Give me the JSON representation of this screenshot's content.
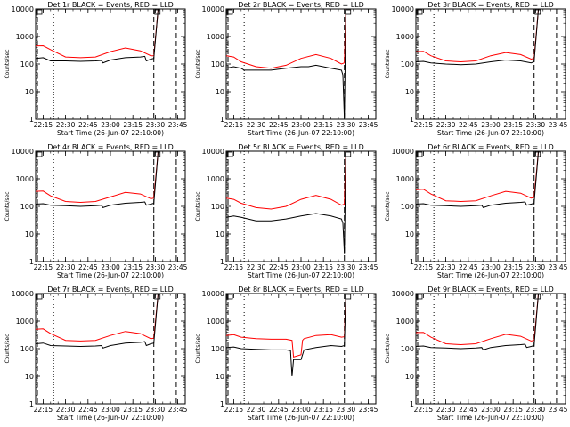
{
  "chart_data": [
    {
      "type": "line",
      "title": "Det 1r BLACK = Events, RED = LLD",
      "xlabel": "Start Time (26-Jun-07 22:10:00)",
      "ylabel": "Counts/sec",
      "yscale": "log",
      "ylim": [
        1,
        10000
      ],
      "xlim_minutes": [
        0,
        100
      ],
      "x_tick_labels": [
        "22:15",
        "22:30",
        "22:45",
        "23:00",
        "23:15",
        "23:30",
        "23:45"
      ],
      "y_tick_labels": [
        "1",
        "10",
        "100",
        "1000",
        "10000"
      ],
      "series": [
        {
          "color": "#ff0000",
          "x": [
            0,
            5,
            10,
            20,
            30,
            40,
            50,
            60,
            70,
            77,
            79,
            82,
            84
          ],
          "y": [
            450,
            460,
            330,
            180,
            170,
            180,
            280,
            380,
            300,
            200,
            200,
            12000,
            12000
          ]
        },
        {
          "color": "#000000",
          "x": [
            0,
            5,
            10,
            20,
            30,
            40,
            44,
            45,
            50,
            60,
            70,
            73,
            74,
            77,
            79,
            82,
            84
          ],
          "y": [
            160,
            170,
            130,
            130,
            125,
            130,
            135,
            110,
            140,
            170,
            180,
            190,
            130,
            150,
            160,
            12000,
            12000
          ]
        }
      ],
      "vlines": [
        {
          "x": 0,
          "style": "dashed"
        },
        {
          "x": 12,
          "style": "dotted"
        },
        {
          "x": 79,
          "style": "dashed"
        },
        {
          "x": 94,
          "style": "dashed"
        }
      ]
    },
    {
      "type": "line",
      "title": "Det 2r BLACK = Events, RED = LLD",
      "xlabel": "Start Time (26-Jun-07 22:10:00)",
      "ylabel": "Counts/sec",
      "yscale": "log",
      "ylim": [
        1,
        10000
      ],
      "xlim_minutes": [
        0,
        100
      ],
      "x_tick_labels": [
        "22:15",
        "22:30",
        "22:45",
        "23:00",
        "23:15",
        "23:30",
        "23:45"
      ],
      "y_tick_labels": [
        "1",
        "10",
        "100",
        "1000",
        "10000"
      ],
      "series": [
        {
          "color": "#ff0000",
          "x": [
            0,
            5,
            10,
            20,
            30,
            40,
            50,
            60,
            70,
            77,
            79,
            80,
            83
          ],
          "y": [
            200,
            180,
            120,
            80,
            70,
            90,
            160,
            220,
            160,
            100,
            110,
            12000,
            12000
          ]
        },
        {
          "color": "#000000",
          "x": [
            0,
            5,
            10,
            12,
            20,
            30,
            40,
            50,
            55,
            60,
            70,
            77,
            78,
            79,
            80
          ],
          "y": [
            70,
            80,
            70,
            60,
            60,
            60,
            70,
            80,
            80,
            90,
            70,
            60,
            40,
            1,
            12000
          ]
        }
      ],
      "vlines": [
        {
          "x": 0,
          "style": "dashed"
        },
        {
          "x": 12,
          "style": "dotted"
        },
        {
          "x": 79,
          "style": "dashed"
        }
      ]
    },
    {
      "type": "line",
      "title": "Det 3r BLACK = Events, RED = LLD",
      "xlabel": "Start Time (26-Jun-07 22:10:00)",
      "ylabel": "Counts/sec",
      "yscale": "log",
      "ylim": [
        1,
        10000
      ],
      "xlim_minutes": [
        0,
        100
      ],
      "x_tick_labels": [
        "22:15",
        "22:30",
        "22:45",
        "23:00",
        "23:15",
        "23:30",
        "23:45"
      ],
      "y_tick_labels": [
        "1",
        "10",
        "100",
        "1000",
        "10000"
      ],
      "series": [
        {
          "color": "#ff0000",
          "x": [
            0,
            5,
            10,
            20,
            30,
            40,
            50,
            60,
            70,
            77,
            79,
            82,
            84
          ],
          "y": [
            280,
            290,
            200,
            130,
            120,
            130,
            200,
            260,
            220,
            150,
            160,
            12000,
            12000
          ]
        },
        {
          "color": "#000000",
          "x": [
            0,
            5,
            10,
            20,
            30,
            40,
            50,
            60,
            70,
            77,
            79,
            82,
            84
          ],
          "y": [
            120,
            125,
            110,
            100,
            95,
            100,
            120,
            140,
            130,
            110,
            120,
            12000,
            12000
          ]
        }
      ],
      "vlines": [
        {
          "x": 0,
          "style": "dashed"
        },
        {
          "x": 12,
          "style": "dotted"
        },
        {
          "x": 79,
          "style": "dashed"
        },
        {
          "x": 94,
          "style": "dashed"
        }
      ]
    },
    {
      "type": "line",
      "title": "Det 4r BLACK = Events, RED = LLD",
      "xlabel": "Start Time (26-Jun-07 22:10:00)",
      "ylabel": "Counts/sec",
      "yscale": "log",
      "ylim": [
        1,
        10000
      ],
      "xlim_minutes": [
        0,
        100
      ],
      "x_tick_labels": [
        "22:15",
        "22:30",
        "22:45",
        "23:00",
        "23:15",
        "23:30",
        "23:45"
      ],
      "y_tick_labels": [
        "1",
        "10",
        "100",
        "1000",
        "10000"
      ],
      "series": [
        {
          "color": "#ff0000",
          "x": [
            0,
            5,
            10,
            20,
            30,
            40,
            50,
            60,
            70,
            77,
            79,
            82,
            84
          ],
          "y": [
            350,
            360,
            240,
            150,
            140,
            150,
            220,
            320,
            280,
            190,
            200,
            12000,
            12000
          ]
        },
        {
          "color": "#000000",
          "x": [
            0,
            5,
            10,
            20,
            30,
            40,
            44,
            45,
            50,
            60,
            70,
            73,
            74,
            77,
            79,
            82,
            84
          ],
          "y": [
            120,
            125,
            110,
            105,
            100,
            105,
            110,
            90,
            110,
            130,
            140,
            145,
            110,
            120,
            130,
            12000,
            12000
          ]
        }
      ],
      "vlines": [
        {
          "x": 0,
          "style": "dashed"
        },
        {
          "x": 12,
          "style": "dotted"
        },
        {
          "x": 79,
          "style": "dashed"
        },
        {
          "x": 94,
          "style": "dashed"
        }
      ]
    },
    {
      "type": "line",
      "title": "Det 5r BLACK = Events, RED = LLD",
      "xlabel": "Start Time (26-Jun-07 22:10:00)",
      "ylabel": "Counts/sec",
      "yscale": "log",
      "ylim": [
        1,
        10000
      ],
      "xlim_minutes": [
        0,
        100
      ],
      "x_tick_labels": [
        "22:15",
        "22:30",
        "22:45",
        "23:00",
        "23:15",
        "23:30",
        "23:45"
      ],
      "y_tick_labels": [
        "1",
        "10",
        "100",
        "1000",
        "10000"
      ],
      "series": [
        {
          "color": "#ff0000",
          "x": [
            0,
            5,
            10,
            20,
            30,
            40,
            50,
            60,
            70,
            77,
            79,
            80,
            83
          ],
          "y": [
            200,
            180,
            130,
            90,
            80,
            100,
            180,
            250,
            180,
            110,
            120,
            12000,
            12000
          ]
        },
        {
          "color": "#000000",
          "x": [
            0,
            5,
            10,
            20,
            30,
            40,
            50,
            60,
            70,
            77,
            78,
            79,
            80
          ],
          "y": [
            40,
            45,
            40,
            30,
            30,
            35,
            45,
            55,
            45,
            35,
            25,
            2,
            12000
          ]
        }
      ],
      "vlines": [
        {
          "x": 0,
          "style": "dashed"
        },
        {
          "x": 12,
          "style": "dotted"
        },
        {
          "x": 79,
          "style": "dashed"
        }
      ]
    },
    {
      "type": "line",
      "title": "Det 6r BLACK = Events, RED = LLD",
      "xlabel": "Start Time (26-Jun-07 22:10:00)",
      "ylabel": "Counts/sec",
      "yscale": "log",
      "ylim": [
        1,
        10000
      ],
      "xlim_minutes": [
        0,
        100
      ],
      "x_tick_labels": [
        "22:15",
        "22:30",
        "22:45",
        "23:00",
        "23:15",
        "23:30",
        "23:45"
      ],
      "y_tick_labels": [
        "1",
        "10",
        "100",
        "1000",
        "10000"
      ],
      "series": [
        {
          "color": "#ff0000",
          "x": [
            0,
            5,
            10,
            20,
            30,
            40,
            50,
            60,
            70,
            77,
            79,
            82,
            84
          ],
          "y": [
            400,
            420,
            280,
            160,
            150,
            160,
            240,
            350,
            300,
            200,
            210,
            12000,
            12000
          ]
        },
        {
          "color": "#000000",
          "x": [
            0,
            5,
            10,
            20,
            30,
            40,
            44,
            45,
            50,
            60,
            70,
            73,
            74,
            77,
            79,
            82,
            84
          ],
          "y": [
            120,
            125,
            110,
            105,
            100,
            105,
            110,
            90,
            110,
            130,
            140,
            145,
            110,
            120,
            130,
            12000,
            12000
          ]
        }
      ],
      "vlines": [
        {
          "x": 0,
          "style": "dashed"
        },
        {
          "x": 12,
          "style": "dotted"
        },
        {
          "x": 79,
          "style": "dashed"
        },
        {
          "x": 94,
          "style": "dashed"
        }
      ]
    },
    {
      "type": "line",
      "title": "Det 7r BLACK = Events, RED = LLD",
      "xlabel": "Start Time (26-Jun-07 22:10:00)",
      "ylabel": "Counts/sec",
      "yscale": "log",
      "ylim": [
        1,
        10000
      ],
      "xlim_minutes": [
        0,
        100
      ],
      "x_tick_labels": [
        "22:15",
        "22:30",
        "22:45",
        "23:00",
        "23:15",
        "23:30",
        "23:45"
      ],
      "y_tick_labels": [
        "1",
        "10",
        "100",
        "1000",
        "10000"
      ],
      "series": [
        {
          "color": "#ff0000",
          "x": [
            0,
            5,
            10,
            20,
            30,
            40,
            50,
            60,
            70,
            77,
            79,
            82,
            84
          ],
          "y": [
            500,
            520,
            350,
            200,
            190,
            200,
            300,
            420,
            350,
            230,
            240,
            12000,
            12000
          ]
        },
        {
          "color": "#000000",
          "x": [
            0,
            5,
            10,
            20,
            30,
            40,
            44,
            45,
            50,
            60,
            70,
            73,
            74,
            77,
            79,
            82,
            84
          ],
          "y": [
            150,
            160,
            130,
            125,
            120,
            125,
            130,
            105,
            130,
            160,
            170,
            180,
            130,
            150,
            160,
            12000,
            12000
          ]
        }
      ],
      "vlines": [
        {
          "x": 0,
          "style": "dashed"
        },
        {
          "x": 12,
          "style": "dotted"
        },
        {
          "x": 79,
          "style": "dashed"
        },
        {
          "x": 94,
          "style": "dashed"
        }
      ]
    },
    {
      "type": "line",
      "title": "Det 8r BLACK = Events, RED = LLD",
      "xlabel": "Start Time (26-Jun-07 22:10:00)",
      "ylabel": "Counts/sec",
      "yscale": "log",
      "ylim": [
        1,
        10000
      ],
      "xlim_minutes": [
        0,
        100
      ],
      "x_tick_labels": [
        "22:15",
        "22:30",
        "22:45",
        "23:00",
        "23:15",
        "23:30",
        "23:45"
      ],
      "y_tick_labels": [
        "1",
        "10",
        "100",
        "1000",
        "10000"
      ],
      "series": [
        {
          "color": "#ff0000",
          "x": [
            0,
            5,
            10,
            20,
            30,
            40,
            44,
            45,
            50,
            51,
            52,
            60,
            70,
            77,
            79,
            80,
            83
          ],
          "y": [
            300,
            320,
            260,
            230,
            220,
            220,
            200,
            50,
            60,
            200,
            230,
            300,
            320,
            260,
            270,
            12000,
            12000
          ]
        },
        {
          "color": "#000000",
          "x": [
            0,
            5,
            10,
            20,
            30,
            40,
            43,
            44,
            45,
            50,
            52,
            60,
            70,
            77,
            79,
            80
          ],
          "y": [
            110,
            115,
            100,
            95,
            90,
            90,
            85,
            10,
            40,
            40,
            90,
            110,
            130,
            120,
            130,
            12000
          ]
        }
      ],
      "vlines": [
        {
          "x": 0,
          "style": "dashed"
        },
        {
          "x": 12,
          "style": "dotted"
        },
        {
          "x": 79,
          "style": "dashed"
        }
      ]
    },
    {
      "type": "line",
      "title": "Det 9r BLACK = Events, RED = LLD",
      "xlabel": "Start Time (26-Jun-07 22:10:00)",
      "ylabel": "Counts/sec",
      "yscale": "log",
      "ylim": [
        1,
        10000
      ],
      "xlim_minutes": [
        0,
        100
      ],
      "x_tick_labels": [
        "22:15",
        "22:30",
        "22:45",
        "23:00",
        "23:15",
        "23:30",
        "23:45"
      ],
      "y_tick_labels": [
        "1",
        "10",
        "100",
        "1000",
        "10000"
      ],
      "series": [
        {
          "color": "#ff0000",
          "x": [
            0,
            5,
            10,
            20,
            30,
            40,
            50,
            60,
            70,
            77,
            79,
            82,
            84
          ],
          "y": [
            380,
            390,
            260,
            150,
            140,
            150,
            230,
            330,
            280,
            190,
            200,
            12000,
            12000
          ]
        },
        {
          "color": "#000000",
          "x": [
            0,
            5,
            10,
            20,
            30,
            40,
            44,
            45,
            50,
            60,
            70,
            73,
            74,
            77,
            79,
            82,
            84
          ],
          "y": [
            120,
            125,
            110,
            105,
            100,
            105,
            110,
            90,
            110,
            130,
            140,
            145,
            110,
            120,
            130,
            12000,
            12000
          ]
        }
      ],
      "vlines": [
        {
          "x": 0,
          "style": "dashed"
        },
        {
          "x": 12,
          "style": "dotted"
        },
        {
          "x": 79,
          "style": "dashed"
        },
        {
          "x": 94,
          "style": "dashed"
        }
      ]
    }
  ]
}
